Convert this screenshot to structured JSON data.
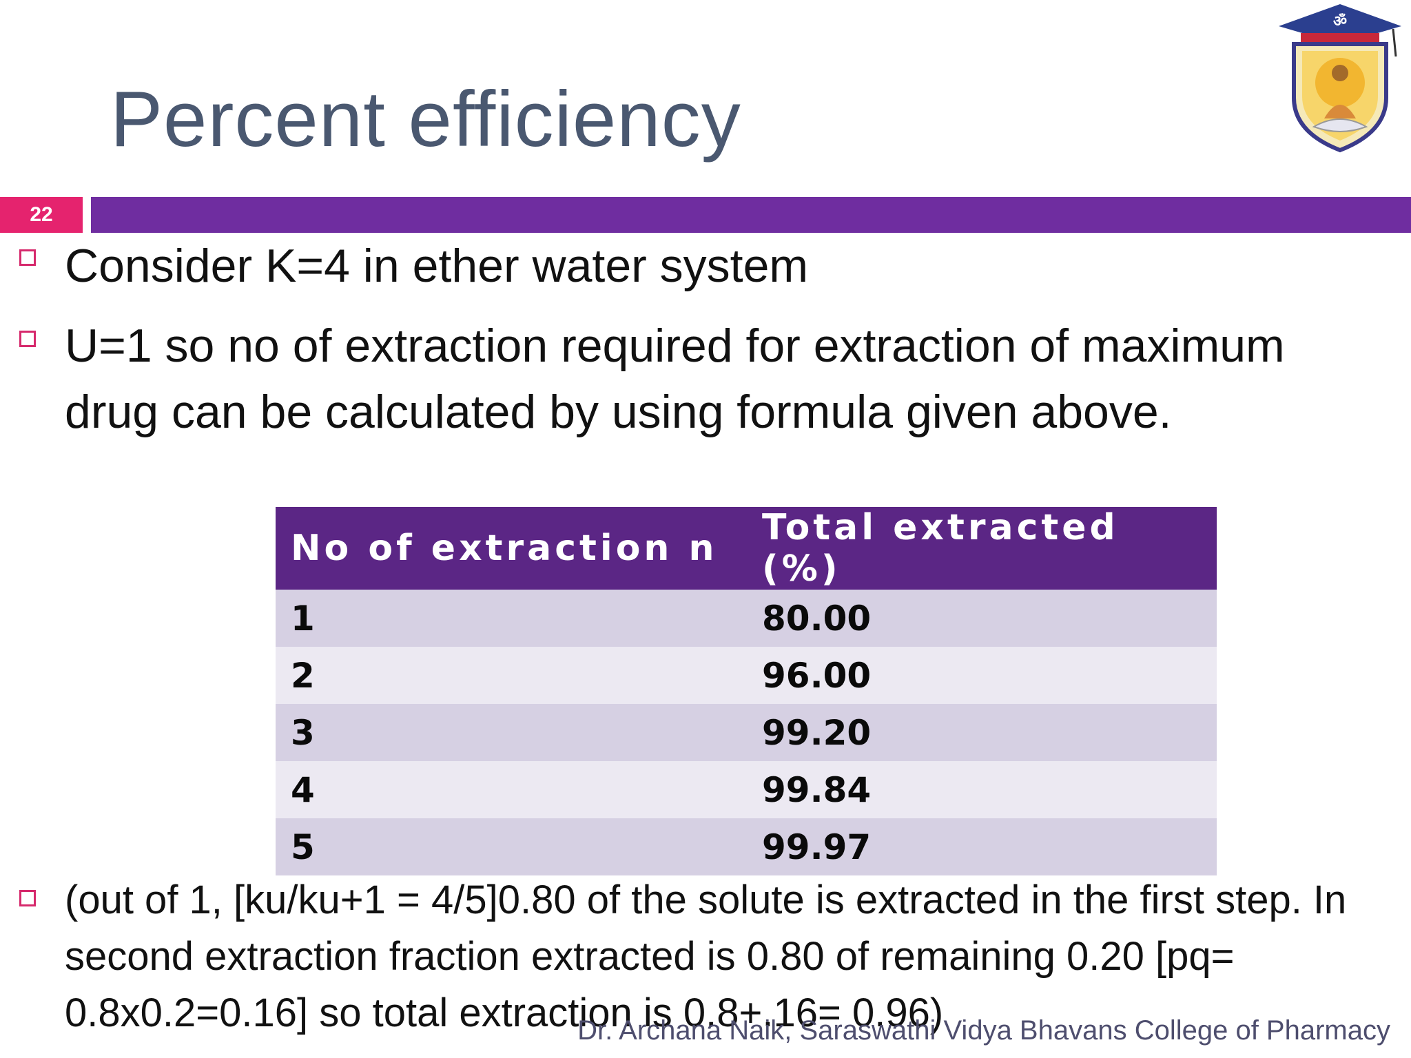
{
  "slide": {
    "title": "Percent efficiency",
    "number": "22"
  },
  "bullets": [
    "Consider K=4 in ether water system",
    "U=1  so  no of extraction required for extraction of maximum drug can be calculated by using formula given above.",
    "(out of 1, [ku/ku+1 = 4/5]0.80 of the solute is extracted in the first step. In second extraction fraction extracted is 0.80 of remaining 0.20 [pq= 0.8x0.2=0.16]  so total extraction is 0.8+.16= 0.96)"
  ],
  "table": {
    "headers": [
      "No of extraction n",
      "Total extracted (%)"
    ],
    "rows": [
      [
        "1",
        "80.00"
      ],
      [
        "2",
        "96.00"
      ],
      [
        "3",
        "99.20"
      ],
      [
        "4",
        "99.84"
      ],
      [
        "5",
        "99.97"
      ]
    ]
  },
  "footer": "Dr. Archana Naik, Saraswathi Vidya Bhavans College of Pharmacy",
  "colors": {
    "title": "#4a5870",
    "accent_bar": "#6f2da0",
    "number_box": "#e5236e",
    "bullet_box": "#d6296c",
    "table_header": "#5b2685"
  },
  "icons": {
    "logo": "college-crest-logo"
  }
}
